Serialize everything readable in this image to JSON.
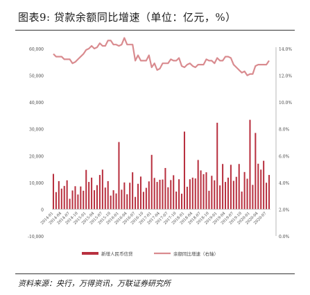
{
  "figure": {
    "title": "图表9:   贷款余额同比增速（单位：亿元，%）",
    "source": "资料来源：央行，万得资讯，万联证券研究所"
  },
  "chart_data": {
    "type": "bar+line",
    "categories": [
      "2014-01",
      "2014-02",
      "2014-03",
      "2014-04",
      "2014-05",
      "2014-06",
      "2014-07",
      "2014-08",
      "2014-09",
      "2014-10",
      "2014-11",
      "2014-12",
      "2015-01",
      "2015-02",
      "2015-03",
      "2015-04",
      "2015-05",
      "2015-06",
      "2015-07",
      "2015-08",
      "2015-09",
      "2015-10",
      "2015-11",
      "2015-12",
      "2016-01",
      "2016-02",
      "2016-03",
      "2016-04",
      "2016-05",
      "2016-06",
      "2016-07",
      "2016-08",
      "2016-09",
      "2016-10",
      "2016-11",
      "2016-12",
      "2017-01",
      "2017-02",
      "2017-03",
      "2017-04",
      "2017-05",
      "2017-06",
      "2017-07",
      "2017-08",
      "2017-09",
      "2017-10",
      "2017-11",
      "2017-12",
      "2018-01",
      "2018-02",
      "2018-03",
      "2018-04",
      "2018-05",
      "2018-06",
      "2018-07",
      "2018-08",
      "2018-09",
      "2018-10",
      "2018-11",
      "2018-12",
      "2019-01",
      "2019-02",
      "2019-03",
      "2019-04",
      "2019-05",
      "2019-06",
      "2019-07",
      "2019-08",
      "2019-09",
      "2019-10",
      "2019-11",
      "2019-12",
      "2020-01",
      "2020-02",
      "2020-03",
      "2020-04",
      "2020-05",
      "2020-06",
      "2020-07",
      "2020-08"
    ],
    "tick_labels": [
      "2014-01",
      "2014-04",
      "2014-07",
      "2014-10",
      "2015-01",
      "2015-04",
      "2015-07",
      "2015-10",
      "2016-01",
      "2016-04",
      "2016-07",
      "2016-10",
      "2017-01",
      "2017-04",
      "2017-07",
      "2017-10",
      "2018-01",
      "2018-04",
      "2018-07",
      "2018-10",
      "2019-01",
      "2019-04",
      "2019-07",
      "2019-10",
      "2020-01",
      "2020-04",
      "2020-07"
    ],
    "series": [
      {
        "name": "新增人民币信贷",
        "type": "bar",
        "axis": "left",
        "color": "#b8303f",
        "values": [
          13200,
          6400,
          10500,
          7700,
          8700,
          10800,
          3900,
          7000,
          8600,
          5500,
          8500,
          6900,
          14700,
          10200,
          11800,
          7100,
          9000,
          12800,
          14800,
          8100,
          10500,
          5100,
          7100,
          5900,
          25100,
          7300,
          10000,
          5600,
          9900,
          13800,
          4600,
          9500,
          12200,
          6500,
          8000,
          10400,
          20300,
          11700,
          10200,
          11000,
          11100,
          15400,
          8200,
          10900,
          12700,
          6600,
          11200,
          5800,
          29000,
          8400,
          11200,
          11800,
          11500,
          18400,
          14500,
          13100,
          13800,
          6900,
          12500,
          10800,
          32300,
          8900,
          16900,
          10200,
          11800,
          16600,
          10600,
          12100,
          16900,
          6600,
          13900,
          11400,
          33400,
          9100,
          28500,
          17000,
          14800,
          18100,
          9900,
          12800
        ]
      },
      {
        "name": "余额同比增速（右轴）",
        "type": "line",
        "axis": "right",
        "color": "#d98b8f",
        "values": [
          13.6,
          13.4,
          13.4,
          13.4,
          13.2,
          13.2,
          13.2,
          12.9,
          13.0,
          13.2,
          13.4,
          13.6,
          13.9,
          14.0,
          14.2,
          14.0,
          14.1,
          14.4,
          14.2,
          14.2,
          14.6,
          14.6,
          14.3,
          14.3,
          14.2,
          14.3,
          14.8,
          14.3,
          14.3,
          14.3,
          13.1,
          13.5,
          13.1,
          13.1,
          13.1,
          13.5,
          12.6,
          12.9,
          12.4,
          12.5,
          12.9,
          12.9,
          12.9,
          13.2,
          13.1,
          13.1,
          13.3,
          12.7,
          12.6,
          12.8,
          12.9,
          12.7,
          12.6,
          12.8,
          12.8,
          12.8,
          13.2,
          13.1,
          13.1,
          12.9,
          13.3,
          13.1,
          13.1,
          13.4,
          13.4,
          13.3,
          12.8,
          12.6,
          12.4,
          12.2,
          12.3,
          12.0,
          12.1,
          12.1,
          12.7,
          12.8,
          12.8,
          12.8,
          12.8,
          13.1
        ]
      }
    ],
    "left_axis": {
      "min": -10000,
      "max": 60000,
      "step": 10000,
      "tick_labels": [
        "-10,000",
        "0",
        "10,000",
        "20,000",
        "30,000",
        "40,000",
        "50,000",
        "60,000"
      ]
    },
    "right_axis": {
      "min": 0,
      "max": 14,
      "step": 2,
      "tick_labels": [
        "0.0%",
        "2.0%",
        "4.0%",
        "6.0%",
        "8.0%",
        "10.0%",
        "12.0%",
        "14.0%"
      ]
    },
    "legend_position": "bottom-center",
    "grid": false
  }
}
